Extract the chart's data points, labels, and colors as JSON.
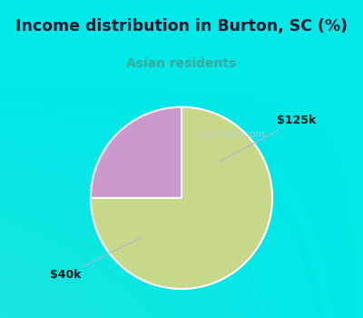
{
  "title": "Income distribution in Burton, SC (%)",
  "subtitle": "Asian residents",
  "subtitle_color": "#3aaa9a",
  "title_color": "#1a1a2e",
  "background_color": "#00e8e8",
  "chart_bg_color": "#e8f5ee",
  "slices": [
    {
      "label": "$40k",
      "value": 75,
      "color": "#c8d88a"
    },
    {
      "label": "$125k",
      "value": 25,
      "color": "#cc99cc"
    }
  ],
  "wedge_edge_color": "#ffffff",
  "wedge_linewidth": 1.5,
  "watermark": "City-Data.com",
  "watermark_color": "#b8ccd8",
  "annotation_color": "#1a1a1a",
  "arrow_color": "#aab8cc"
}
